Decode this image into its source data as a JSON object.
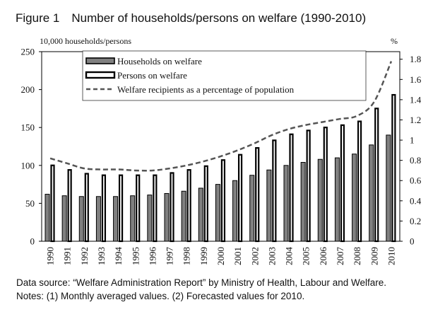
{
  "figure_title": "Figure 1 Number of households/persons on welfare (1990-2010)",
  "footnotes": {
    "source": "Data source: “Welfare Administration Report” by Ministry of Health, Labour and Welfare.",
    "notes": "Notes: (1) Monthly averaged values.  (2) Forecasted values for 2010."
  },
  "chart_data": {
    "type": "bar",
    "left_axis_unit": "10,000 households/persons",
    "right_axis_unit": "%",
    "categories": [
      "1990",
      "1991",
      "1992",
      "1993",
      "1994",
      "1995",
      "1996",
      "1997",
      "1998",
      "1999",
      "2000",
      "2001",
      "2002",
      "2003",
      "2004",
      "2005",
      "2006",
      "2007",
      "2008",
      "2009",
      "2010"
    ],
    "left_ticks": [
      "0",
      "50",
      "100",
      "150",
      "200",
      "250"
    ],
    "right_ticks": [
      "0",
      "0.2",
      "0.4",
      "0.6",
      "0.8",
      "1",
      "1.2",
      "1.4",
      "1.6",
      "1.8"
    ],
    "ylim_left": [
      0,
      250
    ],
    "ylim_right": [
      0,
      1.875
    ],
    "legend_position": "top-center",
    "series": [
      {
        "name": "Households on welfare",
        "kind": "bar",
        "axis": "left",
        "color": "#808080",
        "values": [
          62,
          60,
          59,
          59,
          59,
          60,
          61,
          63,
          66,
          70,
          75,
          80,
          87,
          94,
          100,
          104,
          108,
          110,
          115,
          127,
          140
        ]
      },
      {
        "name": "Persons on welfare",
        "kind": "bar",
        "axis": "left",
        "color": "#ffffff",
        "values": [
          101,
          95,
          90,
          88,
          88,
          88,
          88,
          91,
          95,
          100,
          108,
          115,
          124,
          134,
          142,
          147,
          151,
          154,
          159,
          176,
          194
        ]
      },
      {
        "name": "Welfare recipients as a percentage of population",
        "kind": "line",
        "axis": "right",
        "color": "#555555",
        "values": [
          0.82,
          0.77,
          0.72,
          0.71,
          0.71,
          0.7,
          0.7,
          0.72,
          0.75,
          0.79,
          0.84,
          0.9,
          0.97,
          1.05,
          1.11,
          1.15,
          1.18,
          1.21,
          1.24,
          1.38,
          1.78
        ]
      }
    ]
  }
}
